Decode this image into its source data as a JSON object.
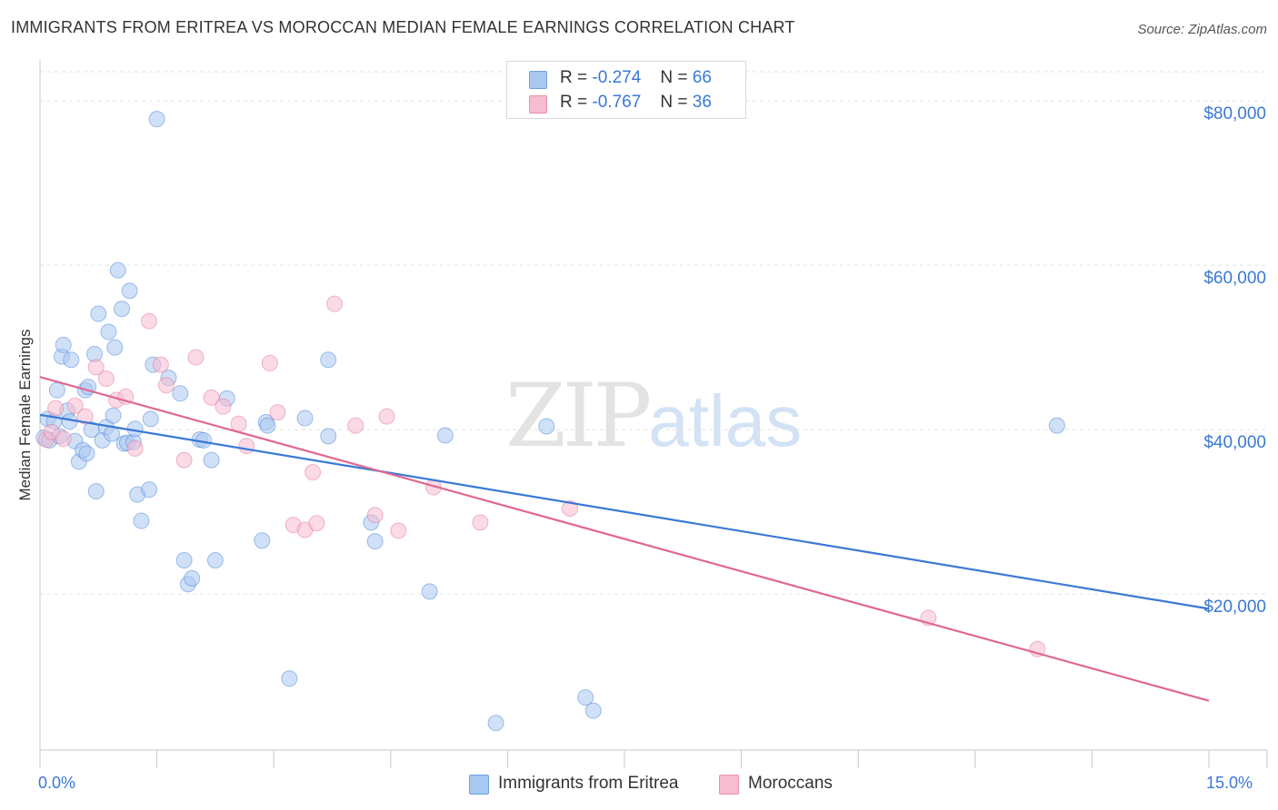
{
  "header": {
    "title": "IMMIGRANTS FROM ERITREA VS MOROCCAN MEDIAN FEMALE EARNINGS CORRELATION CHART",
    "source": "Source: ZipAtlas.com"
  },
  "watermark": {
    "zip": "ZIP",
    "atlas": "atlas"
  },
  "legend_top": {
    "rows": [
      {
        "r_label": "R =",
        "r_value": "-0.274",
        "n_label": "N =",
        "n_value": "66",
        "color": "#a9c8f0"
      },
      {
        "r_label": "R =",
        "r_value": "-0.767",
        "n_label": "N =",
        "n_value": "36",
        "color": "#f7bcd0"
      }
    ]
  },
  "legend_bottom": {
    "items": [
      {
        "label": "Immigrants from Eritrea",
        "color": "#a9c8f0"
      },
      {
        "label": "Moroccans",
        "color": "#f7bcd0"
      }
    ]
  },
  "chart_data": {
    "type": "scatter",
    "title": "IMMIGRANTS FROM ERITREA VS MOROCCAN MEDIAN FEMALE EARNINGS CORRELATION CHART",
    "xlabel": "",
    "ylabel": "Median Female Earnings",
    "xlim": [
      0,
      15
    ],
    "ylim": [
      1000,
      84000
    ],
    "x_tick_labels": [
      {
        "value": 0,
        "label": "0.0%"
      },
      {
        "value": 15,
        "label": "15.0%"
      }
    ],
    "y_ticks": [
      {
        "value": 20000,
        "label": "$20,000"
      },
      {
        "value": 40000,
        "label": "$40,000"
      },
      {
        "value": 60000,
        "label": "$60,000"
      },
      {
        "value": 80000,
        "label": "$80,000"
      }
    ],
    "grid": true,
    "legend": "bottom",
    "series": [
      {
        "name": "Immigrants from Eritrea",
        "color": "#3a78d6",
        "fill": "#a9c8f0",
        "r": -0.274,
        "n": 66,
        "trend": {
          "x": [
            0,
            15
          ],
          "y": [
            41800,
            18200
          ]
        },
        "points": [
          [
            0.05,
            39000
          ],
          [
            0.1,
            41300
          ],
          [
            0.12,
            38700
          ],
          [
            0.18,
            41000
          ],
          [
            0.22,
            44800
          ],
          [
            0.25,
            39200
          ],
          [
            0.28,
            48900
          ],
          [
            0.3,
            50300
          ],
          [
            0.35,
            42300
          ],
          [
            0.38,
            41000
          ],
          [
            0.4,
            48500
          ],
          [
            0.45,
            38600
          ],
          [
            0.5,
            36100
          ],
          [
            0.55,
            37500
          ],
          [
            0.58,
            44800
          ],
          [
            0.6,
            37100
          ],
          [
            0.62,
            45200
          ],
          [
            0.66,
            40000
          ],
          [
            0.7,
            49200
          ],
          [
            0.72,
            32500
          ],
          [
            0.75,
            54100
          ],
          [
            0.8,
            38700
          ],
          [
            0.85,
            40300
          ],
          [
            0.88,
            51900
          ],
          [
            0.92,
            39500
          ],
          [
            0.94,
            41700
          ],
          [
            0.96,
            50000
          ],
          [
            1.0,
            59400
          ],
          [
            1.05,
            54700
          ],
          [
            1.08,
            38300
          ],
          [
            1.12,
            38400
          ],
          [
            1.15,
            56900
          ],
          [
            1.2,
            38500
          ],
          [
            1.22,
            40100
          ],
          [
            1.25,
            32100
          ],
          [
            1.3,
            28900
          ],
          [
            1.4,
            32700
          ],
          [
            1.42,
            41300
          ],
          [
            1.45,
            47900
          ],
          [
            1.5,
            77800
          ],
          [
            1.65,
            46300
          ],
          [
            1.8,
            44400
          ],
          [
            1.85,
            24100
          ],
          [
            1.9,
            21200
          ],
          [
            1.95,
            21900
          ],
          [
            2.05,
            38800
          ],
          [
            2.1,
            38700
          ],
          [
            2.2,
            36300
          ],
          [
            2.25,
            24100
          ],
          [
            2.4,
            43800
          ],
          [
            2.85,
            26500
          ],
          [
            2.9,
            40900
          ],
          [
            2.92,
            40500
          ],
          [
            3.2,
            9700
          ],
          [
            3.4,
            41400
          ],
          [
            3.7,
            48500
          ],
          [
            3.7,
            39200
          ],
          [
            4.25,
            28700
          ],
          [
            4.3,
            26400
          ],
          [
            5.0,
            20300
          ],
          [
            5.2,
            39300
          ],
          [
            5.85,
            4300
          ],
          [
            6.5,
            40400
          ],
          [
            7.0,
            7400
          ],
          [
            7.1,
            5800
          ],
          [
            13.05,
            40500
          ]
        ]
      },
      {
        "name": "Moroccans",
        "color": "#e0688f",
        "fill": "#f7bcd0",
        "r": -0.767,
        "n": 36,
        "trend": {
          "x": [
            0,
            15
          ],
          "y": [
            46400,
            7000
          ]
        },
        "points": [
          [
            0.08,
            38800
          ],
          [
            0.15,
            39700
          ],
          [
            0.2,
            42600
          ],
          [
            0.3,
            38900
          ],
          [
            0.45,
            42900
          ],
          [
            0.58,
            41600
          ],
          [
            0.72,
            47600
          ],
          [
            0.85,
            46200
          ],
          [
            0.98,
            43600
          ],
          [
            1.1,
            44000
          ],
          [
            1.22,
            37700
          ],
          [
            1.4,
            53200
          ],
          [
            1.55,
            47900
          ],
          [
            1.62,
            45400
          ],
          [
            1.85,
            36300
          ],
          [
            2.0,
            48800
          ],
          [
            2.2,
            43900
          ],
          [
            2.35,
            42800
          ],
          [
            2.55,
            40700
          ],
          [
            2.65,
            38000
          ],
          [
            2.95,
            48100
          ],
          [
            3.05,
            42100
          ],
          [
            3.25,
            28400
          ],
          [
            3.4,
            27800
          ],
          [
            3.5,
            34800
          ],
          [
            3.55,
            28600
          ],
          [
            3.78,
            55300
          ],
          [
            4.05,
            40500
          ],
          [
            4.3,
            29600
          ],
          [
            4.45,
            41600
          ],
          [
            4.6,
            27700
          ],
          [
            5.05,
            33000
          ],
          [
            5.65,
            28700
          ],
          [
            6.8,
            30400
          ],
          [
            11.4,
            17100
          ],
          [
            12.8,
            13300
          ]
        ]
      }
    ]
  }
}
